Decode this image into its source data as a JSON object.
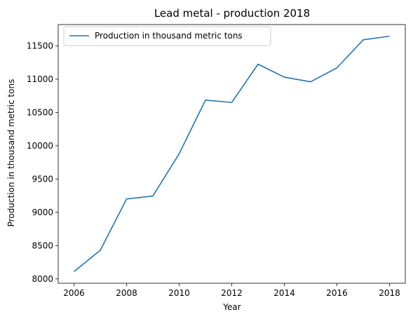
{
  "chart_data": {
    "type": "line",
    "title": "Lead metal - production 2018",
    "xlabel": "Year",
    "ylabel": "Production in thousand metric tons",
    "x": [
      2006,
      2007,
      2008,
      2009,
      2010,
      2011,
      2012,
      2013,
      2014,
      2015,
      2016,
      2017,
      2018
    ],
    "series": [
      {
        "name": "Production in thousand metric tons",
        "color": "#1f77b4",
        "values": [
          8110,
          8430,
          9200,
          9245,
          9880,
          10685,
          10650,
          11225,
          11030,
          10960,
          11170,
          11590,
          11645
        ]
      }
    ],
    "xlim": [
      2005.4,
      2018.6
    ],
    "ylim": [
      7935,
      11820
    ],
    "x_ticks": [
      "2006",
      "2008",
      "2010",
      "2012",
      "2014",
      "2016",
      "2018"
    ],
    "y_ticks": [
      "8000",
      "8500",
      "9000",
      "9500",
      "10000",
      "10500",
      "11000",
      "11500"
    ],
    "grid": false,
    "legend_position": "top-left"
  }
}
